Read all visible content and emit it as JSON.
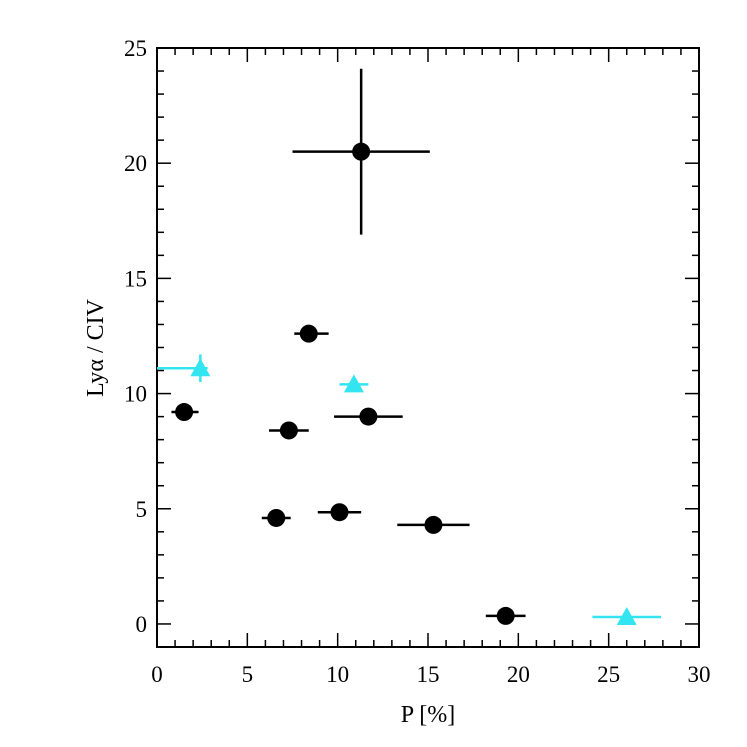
{
  "chart_data": {
    "type": "scatter",
    "xlabel": "P [%]",
    "ylabel": "Lyα / CIV",
    "xlim": [
      0,
      30
    ],
    "ylim": [
      -1,
      25
    ],
    "xticks": [
      0,
      5,
      10,
      15,
      20,
      25,
      30
    ],
    "yticks": [
      0,
      5,
      10,
      15,
      20,
      25
    ],
    "grid": false,
    "series": [
      {
        "marker": "circle",
        "color": "#000000",
        "points": [
          {
            "x": 11.3,
            "y": 20.5,
            "xerr": [
              3.8,
              3.8
            ],
            "yerr": [
              3.6,
              3.6
            ]
          },
          {
            "x": 8.4,
            "y": 12.6,
            "xerr": [
              0.8,
              1.1
            ]
          },
          {
            "x": 1.5,
            "y": 9.2,
            "xerr": [
              0.7,
              0.8
            ]
          },
          {
            "x": 7.3,
            "y": 8.4,
            "xerr": [
              1.1,
              1.1
            ]
          },
          {
            "x": 11.7,
            "y": 9.0,
            "xerr": [
              1.9,
              1.9
            ]
          },
          {
            "x": 6.6,
            "y": 4.6,
            "xerr": [
              0.8,
              0.8
            ]
          },
          {
            "x": 10.1,
            "y": 4.85,
            "xerr": [
              1.2,
              1.2
            ]
          },
          {
            "x": 15.3,
            "y": 4.3,
            "xerr": [
              2.0,
              2.0
            ]
          },
          {
            "x": 19.3,
            "y": 0.35,
            "xerr": [
              1.1,
              1.1
            ]
          }
        ]
      },
      {
        "marker": "triangle",
        "color": "#33e5f0",
        "points": [
          {
            "x": 2.4,
            "y": 11.1,
            "xerr": [
              2.4,
              0.4
            ],
            "yerr": [
              0.6,
              0.6
            ]
          },
          {
            "x": 10.9,
            "y": 10.4,
            "xerr": [
              0.8,
              0.8
            ]
          },
          {
            "x": 26.0,
            "y": 0.3,
            "xerr": [
              1.9,
              1.9
            ]
          }
        ]
      }
    ]
  }
}
